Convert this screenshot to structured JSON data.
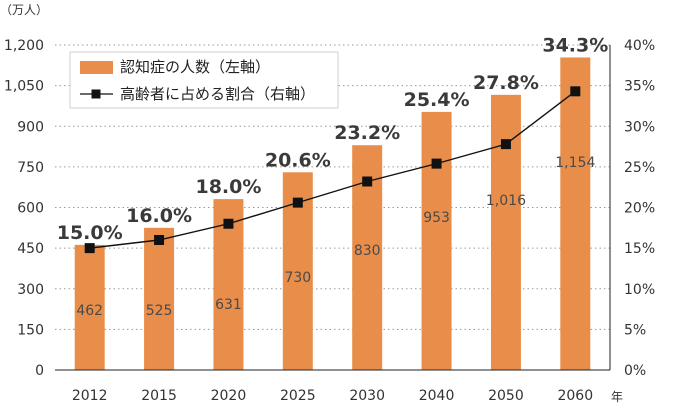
{
  "chart_data": {
    "type": "bar",
    "unit_label": "（万人）",
    "x_unit": "年",
    "categories": [
      "2012",
      "2015",
      "2020",
      "2025",
      "2030",
      "2040",
      "2050",
      "2060"
    ],
    "series": [
      {
        "name": "認知症の人数（左軸）",
        "type": "bar",
        "axis": "left",
        "color": "#E98E4A",
        "values": [
          462,
          525,
          631,
          730,
          830,
          953,
          1016,
          1154
        ],
        "labels": [
          "462",
          "525",
          "631",
          "730",
          "830",
          "953",
          "1,016",
          "1,154"
        ]
      },
      {
        "name": "高齢者に占める割合（右軸）",
        "type": "line",
        "axis": "right",
        "color": "#111111",
        "values": [
          15.0,
          16.0,
          18.0,
          20.6,
          23.2,
          25.4,
          27.8,
          34.3
        ],
        "labels": [
          "15.0%",
          "16.0%",
          "18.0%",
          "20.6%",
          "23.2%",
          "25.4%",
          "27.8%",
          "34.3%"
        ]
      }
    ],
    "y_left": {
      "range": [
        0,
        1200
      ],
      "ticks": [
        0,
        150,
        300,
        450,
        600,
        750,
        900,
        1050,
        1200
      ],
      "tick_labels": [
        "0",
        "150",
        "300",
        "450",
        "600",
        "750",
        "900",
        "1,050",
        "1,200"
      ]
    },
    "y_right": {
      "range": [
        0,
        40
      ],
      "ticks": [
        0,
        5,
        10,
        15,
        20,
        25,
        30,
        35,
        40
      ],
      "tick_labels": [
        "0%",
        "5%",
        "10%",
        "15%",
        "20%",
        "25%",
        "30%",
        "35%",
        "40%"
      ]
    },
    "grid": true,
    "legend_position": "top-left"
  }
}
